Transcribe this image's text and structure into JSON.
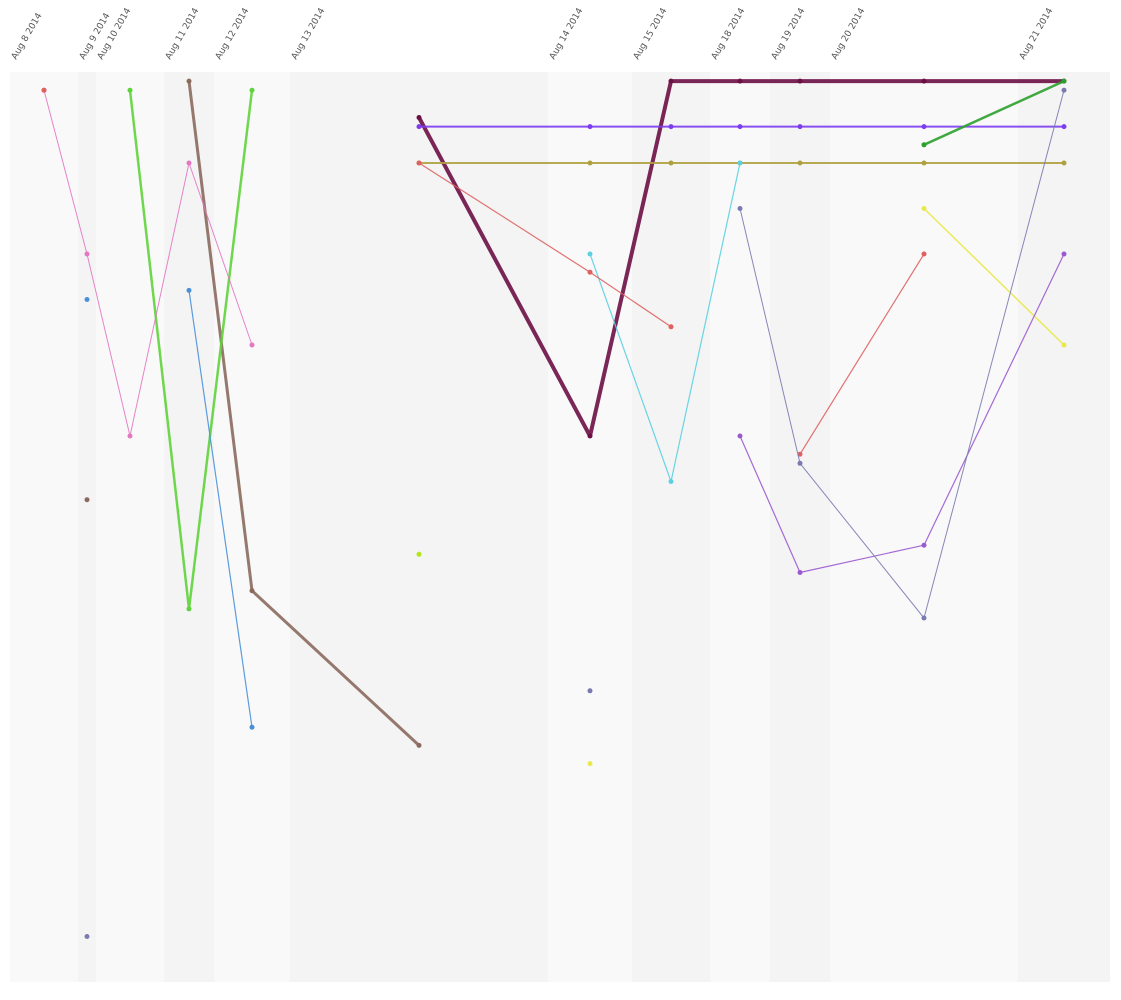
{
  "chart_data": {
    "type": "line",
    "categories": [
      "Aug 8 2014",
      "Aug 9 2014",
      "Aug 10 2014",
      "Aug 11 2014",
      "Aug 12 2014",
      "Aug 13 2014",
      "Aug 14 2014",
      "Aug 15 2014",
      "Aug 18 2014",
      "Aug 19 2014",
      "Aug 20 2014",
      "Aug 21 2014"
    ],
    "ylim": [
      0,
      100
    ],
    "series": [
      {
        "color": "#6b0f45",
        "width": 4,
        "values": [
          null,
          null,
          null,
          null,
          null,
          5,
          40,
          1,
          1,
          1,
          1,
          1
        ]
      },
      {
        "color": "#8b6a5e",
        "width": 3,
        "values": [
          null,
          47,
          null,
          1,
          57,
          74,
          null,
          null,
          null,
          null,
          null,
          null
        ]
      },
      {
        "color": "#5fd33a",
        "width": 2.5,
        "values": [
          null,
          null,
          2,
          59,
          2,
          null,
          null,
          null,
          null,
          null,
          null,
          null
        ]
      },
      {
        "color": "#b5e61d",
        "width": 3,
        "values": [
          null,
          null,
          null,
          null,
          null,
          53,
          null,
          null,
          null,
          null,
          null,
          null
        ]
      },
      {
        "color": "#7d3cf0",
        "width": 2,
        "values": [
          null,
          null,
          null,
          null,
          null,
          6,
          6,
          6,
          6,
          6,
          6,
          6
        ]
      },
      {
        "color": "#b0a040",
        "width": 2,
        "values": [
          null,
          null,
          null,
          null,
          null,
          10,
          10,
          10,
          10,
          10,
          10,
          10
        ]
      },
      {
        "color": "#2ca02c",
        "width": 2.5,
        "values": [
          null,
          null,
          null,
          null,
          null,
          null,
          null,
          null,
          null,
          null,
          8,
          1
        ]
      },
      {
        "color": "#e377c2",
        "width": 1,
        "values": [
          2,
          20,
          40,
          10,
          30,
          null,
          null,
          null,
          null,
          null,
          null,
          null
        ]
      },
      {
        "color": "#4a90d9",
        "width": 1.2,
        "values": [
          null,
          25,
          null,
          24,
          72,
          null,
          null,
          null,
          null,
          null,
          null,
          null
        ]
      },
      {
        "color": "#5ad0e0",
        "width": 1.2,
        "values": [
          null,
          null,
          null,
          null,
          null,
          null,
          20,
          45,
          10,
          null,
          null,
          null
        ]
      },
      {
        "color": "#e8e84a",
        "width": 1.5,
        "values": [
          null,
          null,
          null,
          null,
          null,
          null,
          76,
          null,
          null,
          null,
          15,
          30
        ]
      },
      {
        "color": "#9b59d0",
        "width": 1.2,
        "values": [
          null,
          null,
          null,
          null,
          null,
          null,
          null,
          null,
          40,
          55,
          52,
          20
        ]
      },
      {
        "color": "#e06060",
        "width": 1.2,
        "values": [
          2,
          null,
          null,
          null,
          null,
          10,
          22,
          28,
          null,
          42,
          20,
          null
        ]
      },
      {
        "color": "#7a7ab0",
        "width": 1,
        "values": [
          null,
          95,
          null,
          null,
          null,
          null,
          68,
          null,
          15,
          43,
          60,
          2
        ]
      }
    ]
  }
}
